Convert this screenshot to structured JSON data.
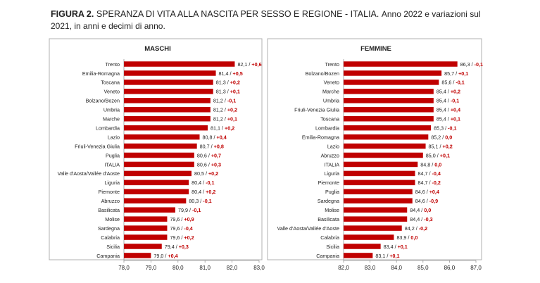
{
  "header": {
    "figure_label": "FIGURA 2.",
    "title_caps": "SPERANZA DI VITA ALLA NASCITA PER SESSO E REGIONE - ITALIA.",
    "title_rest": "Anno 2022  e variazioni sul 2021, in anni e decimi di anno."
  },
  "colors": {
    "bar": "#c00000",
    "negative": "#c00000",
    "positive": "#c00000",
    "frame": "#b0b0b0"
  },
  "chart_data": [
    {
      "type": "bar",
      "orientation": "horizontal",
      "title": "MASCHI",
      "xlim": [
        78.0,
        83.0
      ],
      "xticks": [
        "78,0",
        "79,0",
        "80,0",
        "81,0",
        "82,0",
        "83,0"
      ],
      "tick_values": [
        78,
        79,
        80,
        81,
        82,
        83
      ],
      "categories": [
        "Trento",
        "Emilia-Romagna",
        "Toscana",
        "Veneto",
        "Bolzano/Bozen",
        "Umbria",
        "Marche",
        "Lombardia",
        "Lazio",
        "Friuli-Venezia Giulia",
        "Puglia",
        "ITALIA",
        "Valle d'Aosta/Vallée d'Aoste",
        "Liguria",
        "Piemonte",
        "Abruzzo",
        "Basilicata",
        "Molise",
        "Sardegna",
        "Calabria",
        "Sicilia",
        "Campania"
      ],
      "values": [
        82.1,
        81.4,
        81.3,
        81.3,
        81.2,
        81.2,
        81.2,
        81.1,
        80.8,
        80.7,
        80.6,
        80.6,
        80.5,
        80.4,
        80.4,
        80.3,
        79.9,
        79.6,
        79.6,
        79.6,
        79.4,
        79.0
      ],
      "value_labels": [
        "82,1",
        "81,4",
        "81,3",
        "81,3",
        "81,2",
        "81,2",
        "81,2",
        "81,1",
        "80,8",
        "80,7",
        "80,6",
        "80,6",
        "80,5",
        "80,4",
        "80,4",
        "80,3",
        "79,9",
        "79,6",
        "79,6",
        "79,6",
        "79,4",
        "79,0"
      ],
      "change_labels": [
        "+0,6",
        "+0,5",
        "+0,2",
        "+0,1",
        "-0,1",
        "+0,2",
        "+0,1",
        "+0,2",
        "+0,4",
        "+0,8",
        "+0,7",
        "+0,3",
        "+0,2",
        "-0,1",
        "+0,2",
        "-0,1",
        "-0,1",
        "+0,9",
        "-0,4",
        "+0,2",
        "+0,3",
        "+0,4"
      ]
    },
    {
      "type": "bar",
      "orientation": "horizontal",
      "title": "FEMMINE",
      "xlim": [
        82.0,
        87.0
      ],
      "xticks": [
        "82,0",
        "83,0",
        "84,0",
        "85,0",
        "86,0",
        "87,0"
      ],
      "tick_values": [
        82,
        83,
        84,
        85,
        86,
        87
      ],
      "categories": [
        "Trento",
        "Bolzano/Bozen",
        "Veneto",
        "Marche",
        "Umbria",
        "Friuli-Venezia Giulia",
        "Toscana",
        "Lombardia",
        "Emilia-Romagna",
        "Lazio",
        "Abruzzo",
        "ITALIA",
        "Liguria",
        "Piemonte",
        "Puglia",
        "Sardegna",
        "Molise",
        "Basilicata",
        "Valle d'Aosta/Vallée d'Aoste",
        "Calabria",
        "Sicilia",
        "Campania"
      ],
      "values": [
        86.3,
        85.7,
        85.6,
        85.4,
        85.4,
        85.4,
        85.4,
        85.3,
        85.2,
        85.1,
        85.0,
        84.8,
        84.7,
        84.7,
        84.6,
        84.6,
        84.4,
        84.4,
        84.2,
        83.9,
        83.4,
        83.1
      ],
      "value_labels": [
        "86,3",
        "85,7",
        "85,6",
        "85,4",
        "85,4",
        "85,4",
        "85,4",
        "85,3",
        "85,2",
        "85,1",
        "85,0",
        "84,8",
        "84,7",
        "84,7",
        "84,6",
        "84,6",
        "84,4",
        "84,4",
        "84,2",
        "83,9",
        "83,4",
        "83,1"
      ],
      "change_labels": [
        "-0,1",
        "+0,1",
        "-0,1",
        "+0,2",
        "-0,1",
        "+0,4",
        "+0,1",
        "-0,1",
        "0,0",
        "+0,2",
        "+0,1",
        "0,0",
        "-0,4",
        "-0,2",
        "+0,4",
        "-0,9",
        "0,0",
        "-0,3",
        "-0,2",
        "0,0",
        "+0,1",
        "+0,1"
      ]
    }
  ]
}
